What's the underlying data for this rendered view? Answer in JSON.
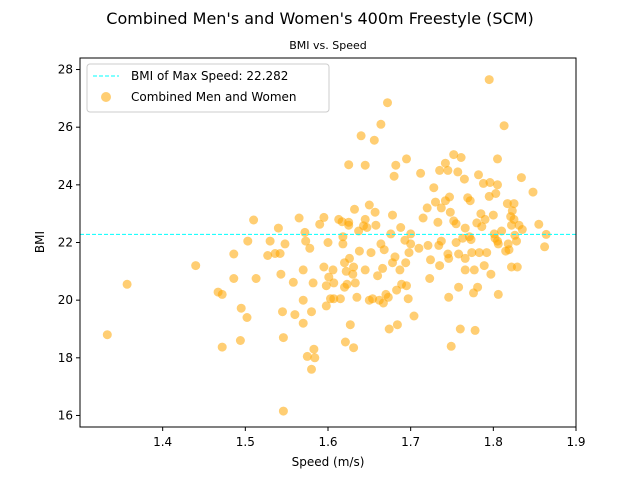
{
  "chart_data": {
    "type": "scatter",
    "title": "Combined Men's and Women's 400m Freestyle (SCM)",
    "subtitle": "BMI vs. Speed",
    "xlabel": "Speed (m/s)",
    "ylabel": "BMI",
    "xlim": [
      1.3,
      1.9
    ],
    "ylim": [
      15.6,
      28.4
    ],
    "xticks": [
      "1.4",
      "1.5",
      "1.6",
      "1.7",
      "1.8",
      "1.9"
    ],
    "yticks": [
      "16",
      "18",
      "20",
      "22",
      "24",
      "26",
      "28"
    ],
    "grid": false,
    "legend_position": "top-left",
    "hline": {
      "label": "BMI of Max Speed: 22.282",
      "y": 22.282,
      "color": "#00ffff",
      "style": "dashed"
    },
    "series": [
      {
        "name": "Combined Men and Women",
        "color": "#ffa500",
        "alpha": 0.55,
        "points": [
          [
            1.333,
            18.8
          ],
          [
            1.357,
            20.55
          ],
          [
            1.44,
            21.2
          ],
          [
            1.467,
            20.28
          ],
          [
            1.472,
            20.2
          ],
          [
            1.472,
            18.37
          ],
          [
            1.486,
            21.6
          ],
          [
            1.486,
            20.75
          ],
          [
            1.494,
            18.6
          ],
          [
            1.495,
            19.72
          ],
          [
            1.503,
            22.05
          ],
          [
            1.502,
            19.4
          ],
          [
            1.51,
            22.78
          ],
          [
            1.513,
            20.75
          ],
          [
            1.527,
            21.55
          ],
          [
            1.53,
            22.05
          ],
          [
            1.536,
            21.62
          ],
          [
            1.54,
            22.5
          ],
          [
            1.542,
            21.62
          ],
          [
            1.543,
            20.9
          ],
          [
            1.545,
            19.6
          ],
          [
            1.546,
            18.7
          ],
          [
            1.546,
            16.15
          ],
          [
            1.548,
            21.95
          ],
          [
            1.558,
            20.62
          ],
          [
            1.56,
            19.5
          ],
          [
            1.565,
            22.85
          ],
          [
            1.57,
            21.05
          ],
          [
            1.57,
            20.0
          ],
          [
            1.57,
            19.2
          ],
          [
            1.572,
            22.35
          ],
          [
            1.573,
            22.05
          ],
          [
            1.575,
            18.05
          ],
          [
            1.578,
            21.8
          ],
          [
            1.58,
            19.6
          ],
          [
            1.58,
            17.6
          ],
          [
            1.582,
            20.6
          ],
          [
            1.583,
            18.3
          ],
          [
            1.584,
            18.0
          ],
          [
            1.59,
            22.63
          ],
          [
            1.595,
            22.87
          ],
          [
            1.595,
            21.15
          ],
          [
            1.598,
            20.5
          ],
          [
            1.598,
            19.8
          ],
          [
            1.6,
            22.0
          ],
          [
            1.601,
            20.8
          ],
          [
            1.603,
            20.05
          ],
          [
            1.606,
            21.05
          ],
          [
            1.607,
            20.6
          ],
          [
            1.607,
            20.05
          ],
          [
            1.613,
            22.8
          ],
          [
            1.615,
            20.05
          ],
          [
            1.617,
            22.72
          ],
          [
            1.618,
            21.95
          ],
          [
            1.618,
            22.2
          ],
          [
            1.62,
            21.3
          ],
          [
            1.62,
            20.45
          ],
          [
            1.621,
            18.55
          ],
          [
            1.622,
            21.0
          ],
          [
            1.623,
            20.55
          ],
          [
            1.625,
            24.7
          ],
          [
            1.625,
            22.7
          ],
          [
            1.625,
            22.6
          ],
          [
            1.626,
            21.45
          ],
          [
            1.627,
            19.15
          ],
          [
            1.63,
            20.9
          ],
          [
            1.631,
            21.15
          ],
          [
            1.631,
            18.35
          ],
          [
            1.632,
            23.15
          ],
          [
            1.633,
            20.6
          ],
          [
            1.635,
            20.1
          ],
          [
            1.637,
            22.4
          ],
          [
            1.638,
            21.7
          ],
          [
            1.64,
            25.7
          ],
          [
            1.643,
            22.58
          ],
          [
            1.645,
            21.05
          ],
          [
            1.645,
            24.68
          ],
          [
            1.645,
            22.8
          ],
          [
            1.647,
            22.52
          ],
          [
            1.65,
            23.3
          ],
          [
            1.65,
            20.0
          ],
          [
            1.652,
            21.65
          ],
          [
            1.654,
            20.05
          ],
          [
            1.656,
            25.55
          ],
          [
            1.657,
            23.05
          ],
          [
            1.658,
            22.6
          ],
          [
            1.66,
            20.85
          ],
          [
            1.662,
            20.0
          ],
          [
            1.664,
            26.1
          ],
          [
            1.664,
            21.95
          ],
          [
            1.666,
            21.1
          ],
          [
            1.667,
            19.9
          ],
          [
            1.668,
            21.75
          ],
          [
            1.67,
            20.2
          ],
          [
            1.672,
            26.85
          ],
          [
            1.673,
            20.1
          ],
          [
            1.674,
            19.0
          ],
          [
            1.676,
            22.3
          ],
          [
            1.678,
            21.3
          ],
          [
            1.678,
            22.95
          ],
          [
            1.68,
            24.3
          ],
          [
            1.681,
            21.5
          ],
          [
            1.682,
            24.68
          ],
          [
            1.683,
            20.35
          ],
          [
            1.684,
            19.15
          ],
          [
            1.687,
            21.05
          ],
          [
            1.688,
            22.52
          ],
          [
            1.689,
            20.55
          ],
          [
            1.693,
            22.08
          ],
          [
            1.694,
            21.3
          ],
          [
            1.695,
            24.9
          ],
          [
            1.695,
            20.5
          ],
          [
            1.697,
            20.05
          ],
          [
            1.698,
            21.65
          ],
          [
            1.7,
            22.3
          ],
          [
            1.7,
            21.95
          ],
          [
            1.704,
            19.45
          ],
          [
            1.71,
            21.8
          ],
          [
            1.712,
            24.4
          ],
          [
            1.715,
            22.85
          ],
          [
            1.72,
            23.2
          ],
          [
            1.721,
            21.9
          ],
          [
            1.723,
            20.75
          ],
          [
            1.724,
            21.4
          ],
          [
            1.728,
            23.9
          ],
          [
            1.73,
            23.4
          ],
          [
            1.733,
            22.7
          ],
          [
            1.734,
            21.9
          ],
          [
            1.735,
            24.5
          ],
          [
            1.735,
            21.2
          ],
          [
            1.737,
            23.2
          ],
          [
            1.737,
            22.05
          ],
          [
            1.742,
            24.75
          ],
          [
            1.742,
            23.45
          ],
          [
            1.745,
            24.5
          ],
          [
            1.745,
            21.6
          ],
          [
            1.746,
            21.45
          ],
          [
            1.746,
            20.1
          ],
          [
            1.747,
            23.58
          ],
          [
            1.748,
            23.05
          ],
          [
            1.749,
            18.4
          ],
          [
            1.752,
            25.05
          ],
          [
            1.752,
            22.75
          ],
          [
            1.755,
            22.65
          ],
          [
            1.755,
            22.0
          ],
          [
            1.757,
            24.45
          ],
          [
            1.758,
            21.6
          ],
          [
            1.758,
            20.45
          ],
          [
            1.76,
            19.0
          ],
          [
            1.761,
            24.95
          ],
          [
            1.763,
            22.15
          ],
          [
            1.765,
            24.2
          ],
          [
            1.766,
            22.5
          ],
          [
            1.766,
            21.45
          ],
          [
            1.766,
            21.05
          ],
          [
            1.769,
            23.55
          ],
          [
            1.771,
            22.2
          ],
          [
            1.772,
            23.45
          ],
          [
            1.773,
            22.1
          ],
          [
            1.774,
            21.65
          ],
          [
            1.776,
            20.25
          ],
          [
            1.777,
            21.05
          ],
          [
            1.778,
            18.95
          ],
          [
            1.78,
            22.68
          ],
          [
            1.781,
            20.45
          ],
          [
            1.782,
            24.35
          ],
          [
            1.783,
            21.65
          ],
          [
            1.785,
            23.0
          ],
          [
            1.786,
            22.55
          ],
          [
            1.788,
            24.05
          ],
          [
            1.789,
            21.2
          ],
          [
            1.79,
            22.8
          ],
          [
            1.792,
            21.65
          ],
          [
            1.795,
            27.65
          ],
          [
            1.795,
            23.6
          ],
          [
            1.796,
            24.08
          ],
          [
            1.797,
            20.9
          ],
          [
            1.8,
            22.95
          ],
          [
            1.801,
            22.3
          ],
          [
            1.802,
            22.15
          ],
          [
            1.803,
            23.7
          ],
          [
            1.805,
            24.9
          ],
          [
            1.805,
            24.0
          ],
          [
            1.805,
            22.05
          ],
          [
            1.806,
            21.95
          ],
          [
            1.806,
            20.2
          ],
          [
            1.81,
            22.4
          ],
          [
            1.813,
            26.05
          ],
          [
            1.815,
            21.7
          ],
          [
            1.817,
            23.35
          ],
          [
            1.818,
            21.95
          ],
          [
            1.819,
            21.75
          ],
          [
            1.821,
            22.9
          ],
          [
            1.822,
            22.6
          ],
          [
            1.822,
            21.15
          ],
          [
            1.823,
            23.1
          ],
          [
            1.825,
            23.35
          ],
          [
            1.825,
            22.8
          ],
          [
            1.826,
            22.25
          ],
          [
            1.828,
            22.05
          ],
          [
            1.829,
            21.15
          ],
          [
            1.831,
            22.6
          ],
          [
            1.834,
            24.25
          ],
          [
            1.835,
            22.45
          ],
          [
            1.848,
            23.75
          ],
          [
            1.855,
            22.63
          ],
          [
            1.862,
            21.85
          ],
          [
            1.864,
            22.28
          ]
        ]
      }
    ]
  }
}
